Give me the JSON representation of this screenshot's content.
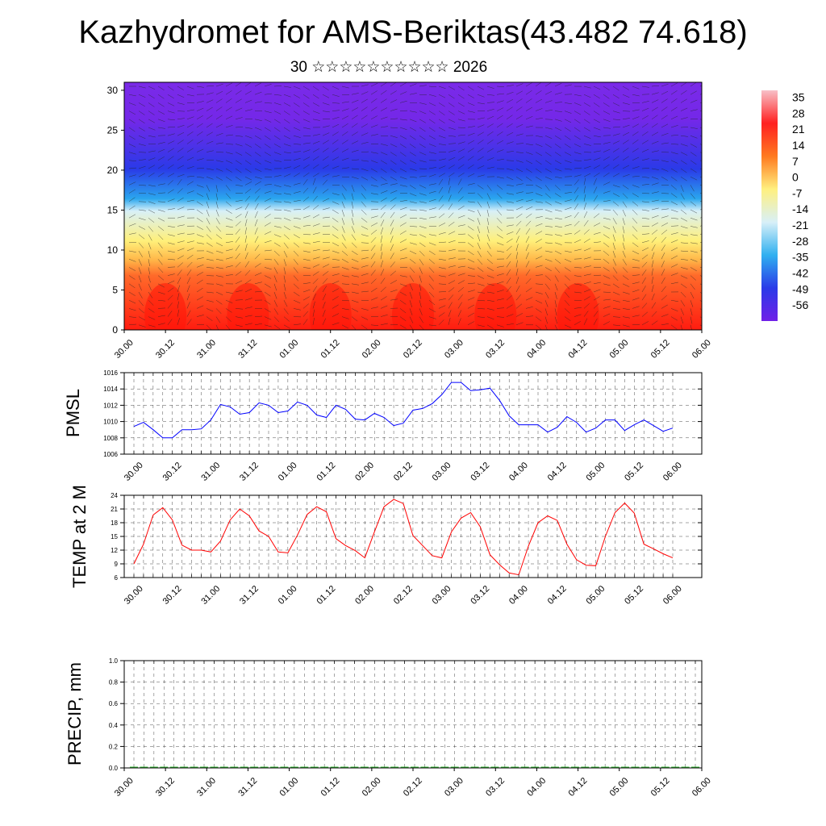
{
  "header": {
    "title": "Kazhydromet for AMS-Beriktas(43.482 74.618)",
    "subtitle": "30 ☆☆☆☆☆☆☆☆☆☆ 2026"
  },
  "chart_data": [
    {
      "type": "heatmap",
      "name": "Temperature and wind cross-section",
      "x_tick_labels": [
        "30.00",
        "30.12",
        "31.00",
        "31.12",
        "01.00",
        "01.12",
        "02.00",
        "02.12",
        "03.00",
        "03.12",
        "04.00",
        "04.12",
        "05.00",
        "05.12",
        "06.00"
      ],
      "y_ticks": [
        0,
        5,
        10,
        15,
        20,
        25,
        30
      ],
      "ylim": [
        0,
        31
      ],
      "colorbar_labels": [
        "35",
        "28",
        "21",
        "14",
        "7",
        "0",
        "-7",
        "-14",
        "-21",
        "-28",
        "-35",
        "-42",
        "-49",
        "-56"
      ],
      "colorbar_values": [
        35,
        28,
        21,
        14,
        7,
        0,
        -7,
        -14,
        -21,
        -28,
        -35,
        -42,
        -49,
        -56
      ],
      "colorbar_range": [
        -63,
        38
      ],
      "colors": {
        "stops": [
          "#ff1c10",
          "#ff6a2a",
          "#ffb447",
          "#fff07a",
          "#d8f0f8",
          "#2aa6ee",
          "#2a3ae8",
          "#7428e8"
        ]
      }
    },
    {
      "type": "line",
      "ylabel": "PMSL",
      "x_tick_labels": [
        "30.00",
        "30.12",
        "31.00",
        "31.12",
        "01.00",
        "01.12",
        "02.00",
        "02.12",
        "03.00",
        "03.12",
        "04.00",
        "04.12",
        "05.00",
        "05.12",
        "06.00"
      ],
      "y_ticks": [
        "1006",
        "1008",
        "1010",
        "1012",
        "1014",
        "1016"
      ],
      "ylim": [
        1006,
        1016
      ],
      "values": [
        1009.4,
        1009.9,
        1009.0,
        1008.0,
        1008.0,
        1009.0,
        1009.0,
        1009.1,
        1010.2,
        1012.1,
        1011.8,
        1010.9,
        1011.1,
        1012.3,
        1012.0,
        1011.1,
        1011.3,
        1012.4,
        1012.0,
        1010.8,
        1010.5,
        1012.0,
        1011.5,
        1010.3,
        1010.2,
        1011.0,
        1010.5,
        1009.5,
        1009.8,
        1011.4,
        1011.6,
        1012.2,
        1013.3,
        1014.8,
        1014.8,
        1013.8,
        1013.9,
        1014.1,
        1012.6,
        1010.7,
        1009.6,
        1009.6,
        1009.6,
        1008.7,
        1009.3,
        1010.6,
        1009.9,
        1008.7,
        1009.2,
        1010.2,
        1010.2,
        1008.9,
        1009.6,
        1010.2,
        1009.5,
        1008.8,
        1009.2
      ],
      "colors": {
        "line": "#0000ff"
      }
    },
    {
      "type": "line",
      "ylabel": "TEMP at 2 M",
      "x_tick_labels": [
        "30.00",
        "30.12",
        "31.00",
        "31.12",
        "01.00",
        "01.12",
        "02.00",
        "02.12",
        "03.00",
        "03.12",
        "04.00",
        "04.12",
        "05.00",
        "05.12",
        "06.00"
      ],
      "y_ticks": [
        "6",
        "9",
        "12",
        "15",
        "18",
        "21",
        "24"
      ],
      "ylim": [
        6,
        24
      ],
      "values": [
        9.0,
        13.3,
        19.7,
        21.3,
        18.6,
        13.1,
        12.0,
        12.0,
        11.6,
        14.0,
        18.6,
        21.0,
        19.5,
        16.2,
        15.0,
        11.6,
        11.4,
        15.3,
        19.8,
        21.5,
        20.4,
        14.5,
        13.0,
        11.9,
        10.3,
        16.0,
        21.5,
        23.1,
        22.2,
        15.2,
        13.0,
        10.8,
        10.3,
        16.0,
        19.0,
        20.2,
        17.1,
        11.0,
        8.8,
        7.0,
        6.6,
        12.9,
        18.0,
        19.5,
        18.5,
        13.3,
        9.9,
        8.7,
        8.6,
        15.0,
        20.2,
        22.3,
        20.1,
        13.3,
        12.3,
        11.2,
        10.3
      ],
      "colors": {
        "line": "#ff0000"
      }
    },
    {
      "type": "bar",
      "ylabel": "PRECIP, mm",
      "x_tick_labels": [
        "30.00",
        "30.12",
        "31.00",
        "31.12",
        "01.00",
        "01.12",
        "02.00",
        "02.12",
        "03.00",
        "03.12",
        "04.00",
        "04.12",
        "05.00",
        "05.12",
        "06.00"
      ],
      "y_ticks": [
        "0.0",
        "0.2",
        "0.4",
        "0.6",
        "0.8",
        "1.0"
      ],
      "ylim": [
        0,
        1
      ],
      "values": [
        0,
        0,
        0,
        0,
        0,
        0,
        0,
        0,
        0,
        0,
        0,
        0,
        0,
        0,
        0,
        0,
        0,
        0,
        0,
        0,
        0,
        0,
        0,
        0,
        0,
        0,
        0,
        0,
        0,
        0,
        0,
        0,
        0,
        0,
        0,
        0,
        0,
        0,
        0,
        0,
        0,
        0,
        0,
        0,
        0,
        0,
        0,
        0,
        0,
        0,
        0,
        0,
        0,
        0,
        0,
        0,
        0
      ],
      "colors": {
        "line": "#00aa00"
      }
    }
  ]
}
